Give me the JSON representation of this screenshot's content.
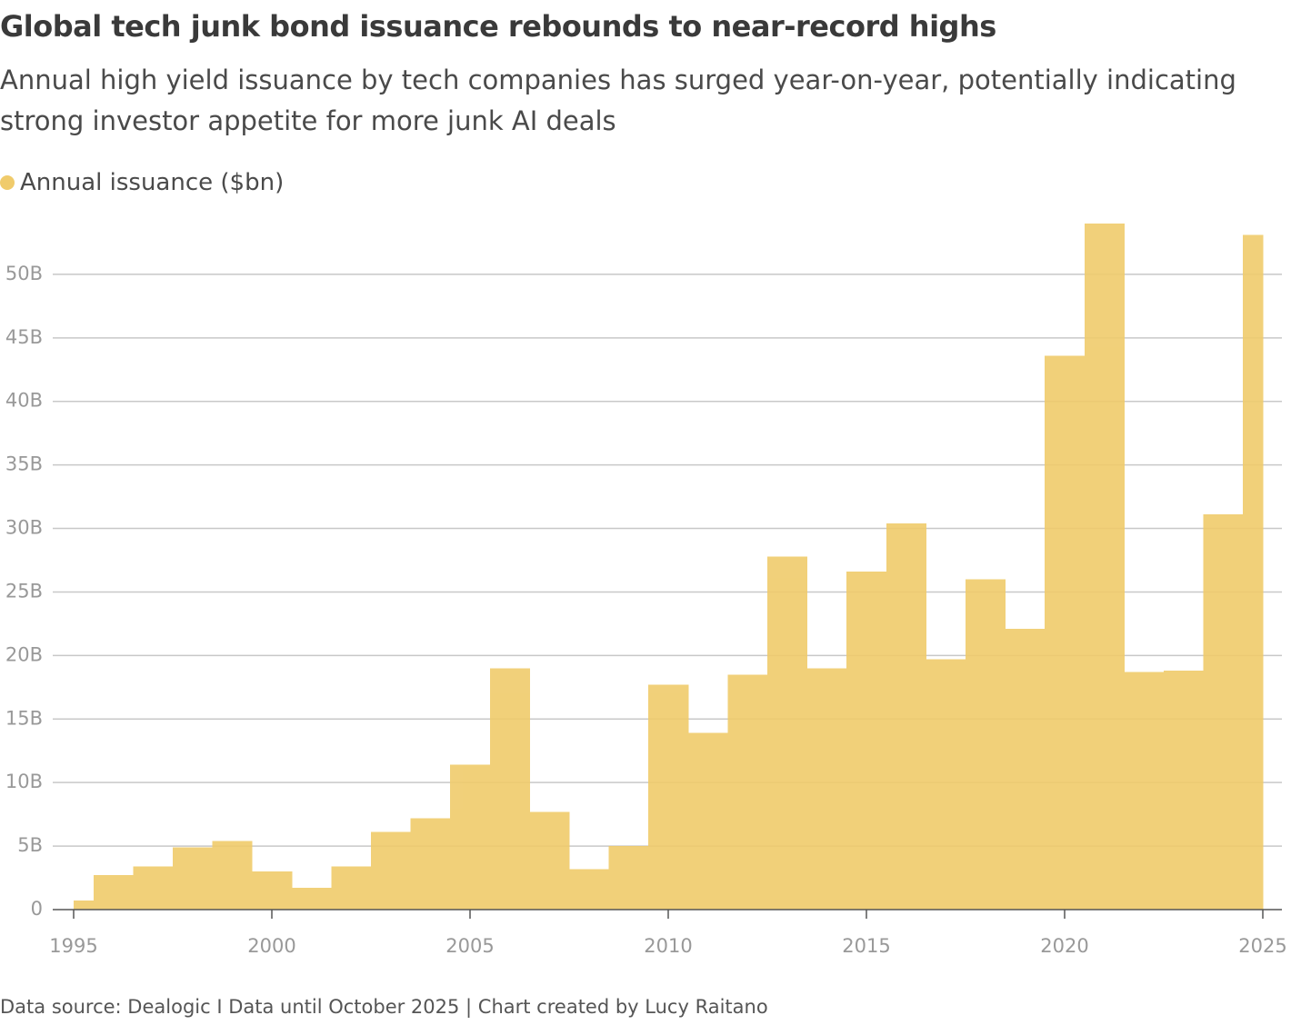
{
  "chart_data": {
    "type": "area",
    "title": "Global tech junk bond issuance rebounds to near-record highs",
    "subtitle": "Annual high yield issuance by tech companies has surged year-on-year, potentially indicating strong investor appetite for more junk AI deals",
    "footer": "Data source: Dealogic I Data until October 2025 | Chart created by Lucy Raitano",
    "x": [
      1995,
      1996,
      1997,
      1998,
      1999,
      2000,
      2001,
      2002,
      2003,
      2004,
      2005,
      2006,
      2007,
      2008,
      2009,
      2010,
      2011,
      2012,
      2013,
      2014,
      2015,
      2016,
      2017,
      2018,
      2019,
      2020,
      2021,
      2022,
      2023,
      2024,
      2025
    ],
    "series": [
      {
        "name": "Annual issuance ($bn)",
        "color": "#f0cb6b",
        "values": [
          0.7,
          2.7,
          3.4,
          4.9,
          5.4,
          3.0,
          1.7,
          3.4,
          6.1,
          7.2,
          11.4,
          19.0,
          7.7,
          3.2,
          5.0,
          17.7,
          13.9,
          18.5,
          27.8,
          19.0,
          26.6,
          30.4,
          19.7,
          26.0,
          22.1,
          43.6,
          54.0,
          18.7,
          18.8,
          31.1,
          53.1
        ]
      }
    ],
    "xlim": [
      1995,
      2025
    ],
    "xticks": [
      1995,
      2000,
      2005,
      2010,
      2015,
      2020,
      2025
    ],
    "ylim": [
      0,
      55
    ],
    "yticks": [
      0,
      {
        "value": 5,
        "label": "5B"
      },
      {
        "value": 10,
        "label": "10B"
      },
      {
        "value": 15,
        "label": "15B"
      },
      {
        "value": 20,
        "label": "20B"
      },
      {
        "value": 25,
        "label": "25B"
      },
      {
        "value": 30,
        "label": "30B"
      },
      {
        "value": 35,
        "label": "35B"
      },
      {
        "value": 40,
        "label": "40B"
      },
      {
        "value": 45,
        "label": "45B"
      },
      {
        "value": 50,
        "label": "50B"
      }
    ],
    "grid": true
  }
}
